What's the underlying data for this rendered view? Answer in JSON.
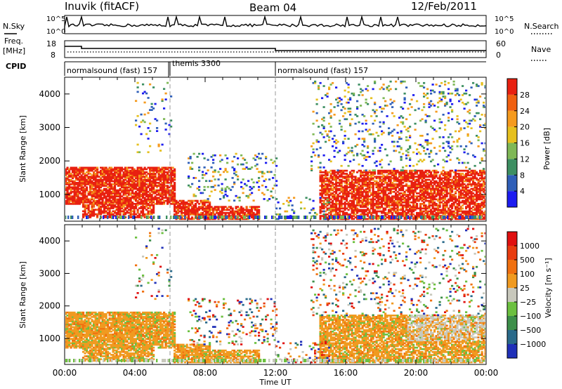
{
  "header": {
    "station": "Inuvik (fitACF)",
    "beam": "Beam 04",
    "date": "12/Feb/2011"
  },
  "top_panels": {
    "nsky_label": "N.Sky",
    "nsky_ticks": [
      "10^5",
      "10^0"
    ],
    "nsearch_label": "N.Search",
    "nsearch_ticks": [
      "10^5",
      "10^0"
    ],
    "freq_label": "Freq.",
    "freq_unit": "[MHz]",
    "freq_ticks": [
      "18",
      "8"
    ],
    "nave_label": "Nave",
    "nave_ticks": [
      "60",
      "0"
    ],
    "cpid_label": "CPID",
    "cpid_segments": [
      {
        "label": "normalsound (fast) 157",
        "start": 0,
        "end": 6
      },
      {
        "label": "themis 3300",
        "start": 6,
        "end": 12
      },
      {
        "label": "normalsound (fast) 157",
        "start": 12,
        "end": 24
      }
    ]
  },
  "chart_data": [
    {
      "type": "heatmap",
      "title": "",
      "ylabel": "Slant Range [km]",
      "xlabel": "",
      "ylim": [
        200,
        4500
      ],
      "yticks": [
        1000,
        2000,
        3000,
        4000
      ],
      "xlim": [
        0,
        24
      ],
      "colorbar": {
        "label": "Power [dB]",
        "ticks": [
          "4",
          "8",
          "12",
          "16",
          "20",
          "24",
          "28"
        ],
        "colors": [
          "#1c1cf0",
          "#2f5fb8",
          "#3d8f62",
          "#7fb856",
          "#e6c01e",
          "#f59a1e",
          "#f06010",
          "#e82010"
        ]
      }
    },
    {
      "type": "heatmap",
      "title": "",
      "ylabel": "Slant Range [km]",
      "xlabel": "Time UT",
      "ylim": [
        200,
        4500
      ],
      "yticks": [
        1000,
        2000,
        3000,
        4000
      ],
      "xlim": [
        0,
        24
      ],
      "xticks": [
        "00:00",
        "04:00",
        "08:00",
        "12:00",
        "16:00",
        "20:00",
        "00:00"
      ],
      "colorbar": {
        "label": "Velocity [m s⁻¹]",
        "ticks": [
          "1000",
          "500",
          "100",
          "25",
          "−25",
          "−100",
          "−500",
          "−1000"
        ],
        "colors": [
          "#2030b8",
          "#2a6a8a",
          "#3d8f4a",
          "#6cc040",
          "#c8c8bc",
          "#f09a20",
          "#f07010",
          "#e83c10",
          "#e01010"
        ]
      }
    }
  ]
}
